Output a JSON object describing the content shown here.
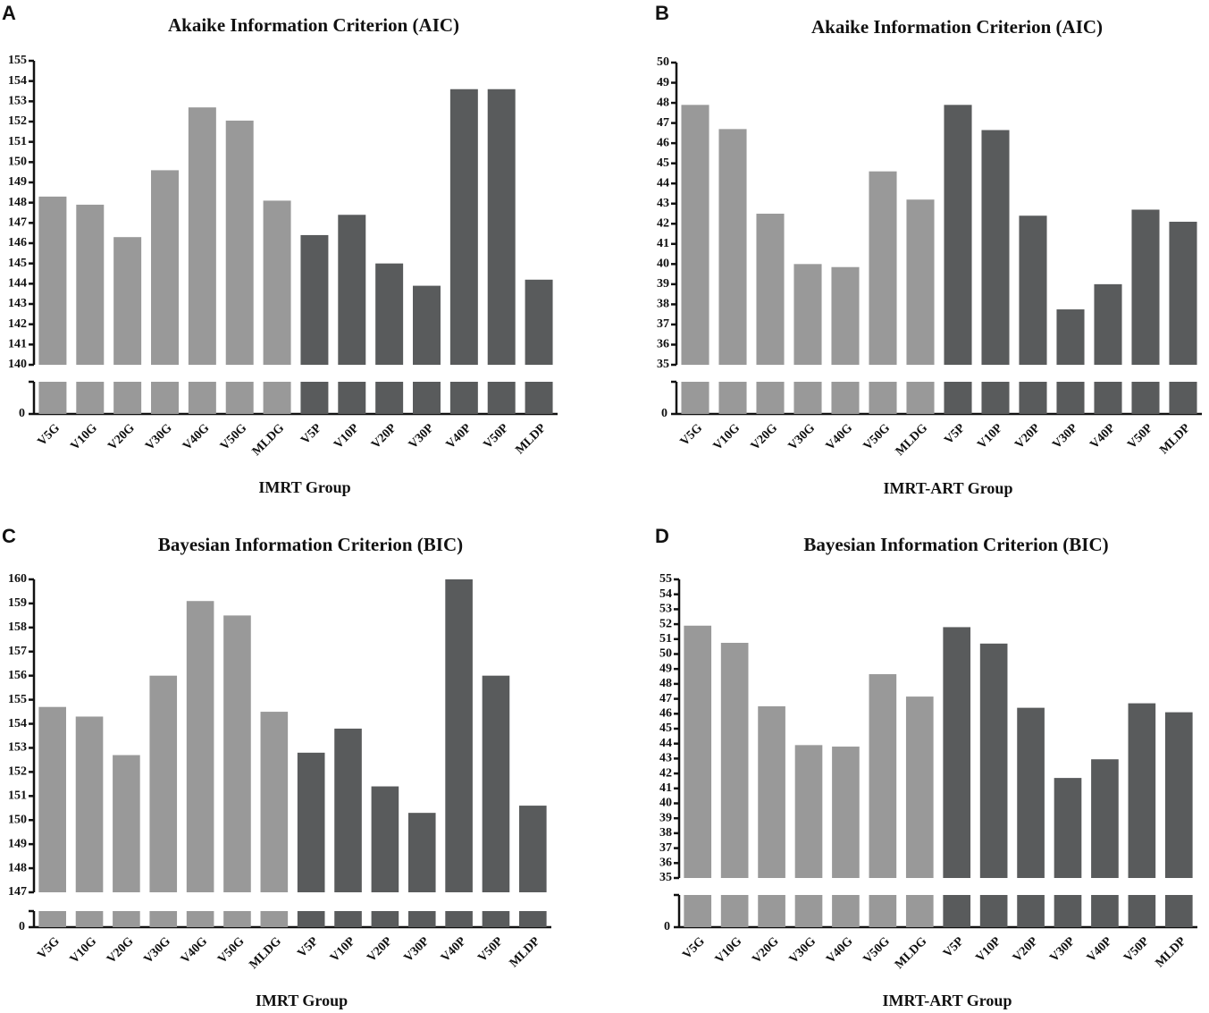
{
  "chart_data": [
    {
      "type": "bar",
      "label": "A",
      "title": "Akaike Information Criterion (AIC)",
      "x_label": "IMRT Group",
      "categories": [
        "V5G",
        "V10G",
        "V20G",
        "V30G",
        "V40G",
        "V50G",
        "MLDG",
        "V5P",
        "V10P",
        "V20P",
        "V30P",
        "V40P",
        "V50P",
        "MLDP"
      ],
      "values": [
        148.3,
        147.9,
        146.3,
        149.6,
        152.7,
        152.05,
        148.1,
        146.4,
        147.4,
        145.0,
        143.9,
        153.6,
        153.6,
        144.2
      ],
      "colors": [
        "#999999",
        "#999999",
        "#999999",
        "#999999",
        "#999999",
        "#999999",
        "#999999",
        "#595b5c",
        "#595b5c",
        "#595b5c",
        "#595b5c",
        "#595b5c",
        "#595b5c",
        "#595b5c"
      ],
      "ylim": [
        140,
        155
      ],
      "yticks": [
        140,
        141,
        142,
        143,
        144,
        145,
        146,
        147,
        148,
        149,
        150,
        151,
        152,
        153,
        154,
        155
      ],
      "lower_ticks": [
        0
      ]
    },
    {
      "type": "bar",
      "label": "B",
      "title": "Akaike Information Criterion (AIC)",
      "x_label": "IMRT-ART Group",
      "categories": [
        "V5G",
        "V10G",
        "V20G",
        "V30G",
        "V40G",
        "V50G",
        "MLDG",
        "V5P",
        "V10P",
        "V20P",
        "V30P",
        "V40P",
        "V50P",
        "MLDP"
      ],
      "values": [
        47.9,
        46.7,
        42.5,
        40.0,
        39.85,
        44.6,
        43.2,
        47.9,
        46.65,
        42.4,
        37.75,
        39.0,
        42.7,
        42.1
      ],
      "colors": [
        "#999999",
        "#999999",
        "#999999",
        "#999999",
        "#999999",
        "#999999",
        "#999999",
        "#595b5c",
        "#595b5c",
        "#595b5c",
        "#595b5c",
        "#595b5c",
        "#595b5c",
        "#595b5c"
      ],
      "ylim": [
        35,
        50
      ],
      "yticks": [
        35,
        36,
        37,
        38,
        39,
        40,
        41,
        42,
        43,
        44,
        45,
        46,
        47,
        48,
        49,
        50
      ],
      "lower_ticks": [
        0
      ]
    },
    {
      "type": "bar",
      "label": "C",
      "title": "Bayesian Information Criterion (BIC)",
      "x_label": "IMRT Group",
      "categories": [
        "V5G",
        "V10G",
        "V20G",
        "V30G",
        "V40G",
        "V50G",
        "MLDG",
        "V5P",
        "V10P",
        "V20P",
        "V30P",
        "V40P",
        "V50P",
        "MLDP"
      ],
      "values": [
        154.7,
        154.3,
        152.7,
        156.0,
        159.1,
        158.5,
        154.5,
        152.8,
        153.8,
        151.4,
        150.3,
        160,
        156.0,
        150.6
      ],
      "colors": [
        "#999999",
        "#999999",
        "#999999",
        "#999999",
        "#999999",
        "#999999",
        "#999999",
        "#595b5c",
        "#595b5c",
        "#595b5c",
        "#595b5c",
        "#595b5c",
        "#595b5c",
        "#595b5c"
      ],
      "ylim": [
        147,
        160
      ],
      "yticks": [
        147,
        148,
        149,
        150,
        151,
        152,
        153,
        154,
        155,
        156,
        157,
        158,
        159,
        160
      ],
      "lower_ticks": [
        0
      ]
    },
    {
      "type": "bar",
      "label": "D",
      "title": "Bayesian Information Criterion (BIC)",
      "x_label": "IMRT-ART Group",
      "categories": [
        "V5G",
        "V10G",
        "V20G",
        "V30G",
        "V40G",
        "V50G",
        "MLDG",
        "V5P",
        "V10P",
        "V20P",
        "V30P",
        "V40P",
        "V50P",
        "MLDP"
      ],
      "values": [
        51.9,
        50.75,
        46.5,
        43.9,
        43.8,
        48.65,
        47.15,
        51.8,
        50.7,
        46.4,
        41.7,
        42.95,
        46.7,
        46.1
      ],
      "colors": [
        "#999999",
        "#999999",
        "#999999",
        "#999999",
        "#999999",
        "#999999",
        "#999999",
        "#595b5c",
        "#595b5c",
        "#595b5c",
        "#595b5c",
        "#595b5c",
        "#595b5c",
        "#595b5c"
      ],
      "ylim": [
        35,
        55
      ],
      "yticks": [
        35,
        36,
        37,
        38,
        39,
        40,
        41,
        42,
        43,
        44,
        45,
        46,
        47,
        48,
        49,
        50,
        51,
        52,
        53,
        54,
        55
      ],
      "lower_ticks": [
        0
      ]
    }
  ]
}
